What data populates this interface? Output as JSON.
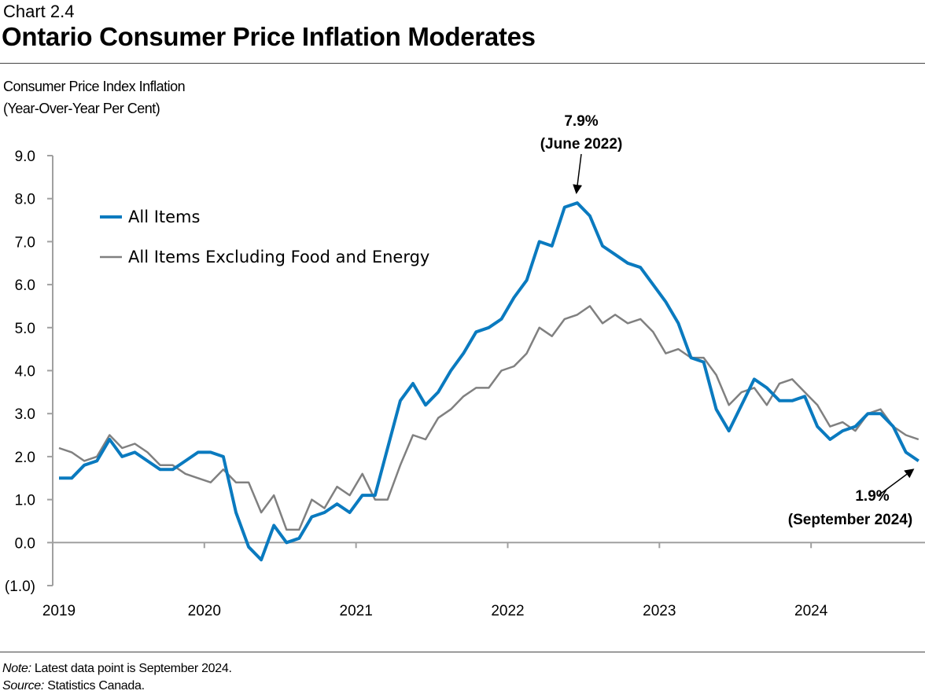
{
  "header": {
    "chart_number": "Chart 2.4",
    "title": "Ontario Consumer Price Inflation Moderates"
  },
  "footer": {
    "note_label": "Note:",
    "note_text": " Latest data point is September 2024.",
    "source_label": "Source:",
    "source_text": " Statistics Canada."
  },
  "chart_data": {
    "type": "line",
    "title": "Ontario Consumer Price Inflation Moderates",
    "ylabel_line1": "Consumer Price Index Inflation",
    "ylabel_line2": "(Year-Over-Year Per Cent)",
    "ylim": [
      -1,
      9
    ],
    "yticks": [
      "(1.0)",
      "0.0",
      "1.0",
      "2.0",
      "3.0",
      "4.0",
      "5.0",
      "6.0",
      "7.0",
      "8.0",
      "9.0"
    ],
    "xticks": [
      "2019",
      "2020",
      "2021",
      "2022",
      "2023",
      "2024"
    ],
    "x_start": "2019-01",
    "x_end": "2024-09",
    "frequency": "monthly",
    "grid": false,
    "legend_position": "top-left",
    "series": [
      {
        "name": "All Items",
        "color": "#0a7abf",
        "values": [
          1.5,
          1.5,
          1.8,
          1.9,
          2.4,
          2.0,
          2.1,
          1.9,
          1.7,
          1.7,
          1.9,
          2.1,
          2.1,
          2.0,
          0.7,
          -0.1,
          -0.4,
          0.4,
          0.0,
          0.1,
          0.6,
          0.7,
          0.9,
          0.7,
          1.1,
          1.1,
          2.2,
          3.3,
          3.7,
          3.2,
          3.5,
          4.0,
          4.4,
          4.9,
          5.0,
          5.2,
          5.7,
          6.1,
          7.0,
          6.9,
          7.8,
          7.9,
          7.6,
          6.9,
          6.7,
          6.5,
          6.4,
          6.0,
          5.6,
          5.1,
          4.3,
          4.2,
          3.1,
          2.6,
          3.2,
          3.8,
          3.6,
          3.3,
          3.3,
          3.4,
          2.7,
          2.4,
          2.6,
          2.7,
          3.0,
          3.0,
          2.7,
          2.1,
          1.9
        ]
      },
      {
        "name": "All Items Excluding Food and Energy",
        "color": "#808080",
        "values": [
          2.2,
          2.1,
          1.9,
          2.0,
          2.5,
          2.2,
          2.3,
          2.1,
          1.8,
          1.8,
          1.6,
          1.5,
          1.4,
          1.7,
          1.4,
          1.4,
          0.7,
          1.1,
          0.3,
          0.3,
          1.0,
          0.8,
          1.3,
          1.1,
          1.6,
          1.0,
          1.0,
          1.8,
          2.5,
          2.4,
          2.9,
          3.1,
          3.4,
          3.6,
          3.6,
          4.0,
          4.1,
          4.4,
          5.0,
          4.8,
          5.2,
          5.3,
          5.5,
          5.1,
          5.3,
          5.1,
          5.2,
          4.9,
          4.4,
          4.5,
          4.3,
          4.3,
          3.9,
          3.2,
          3.5,
          3.6,
          3.2,
          3.7,
          3.8,
          3.5,
          3.2,
          2.7,
          2.8,
          2.6,
          3.0,
          3.1,
          2.7,
          2.5,
          2.4
        ]
      }
    ],
    "annotations": [
      {
        "value_label": "7.9%",
        "date_label": "(June 2022)",
        "series": "All Items",
        "index": 41
      },
      {
        "value_label": "1.9%",
        "date_label": "(September 2024)",
        "series": "All Items",
        "index": 68
      }
    ]
  }
}
